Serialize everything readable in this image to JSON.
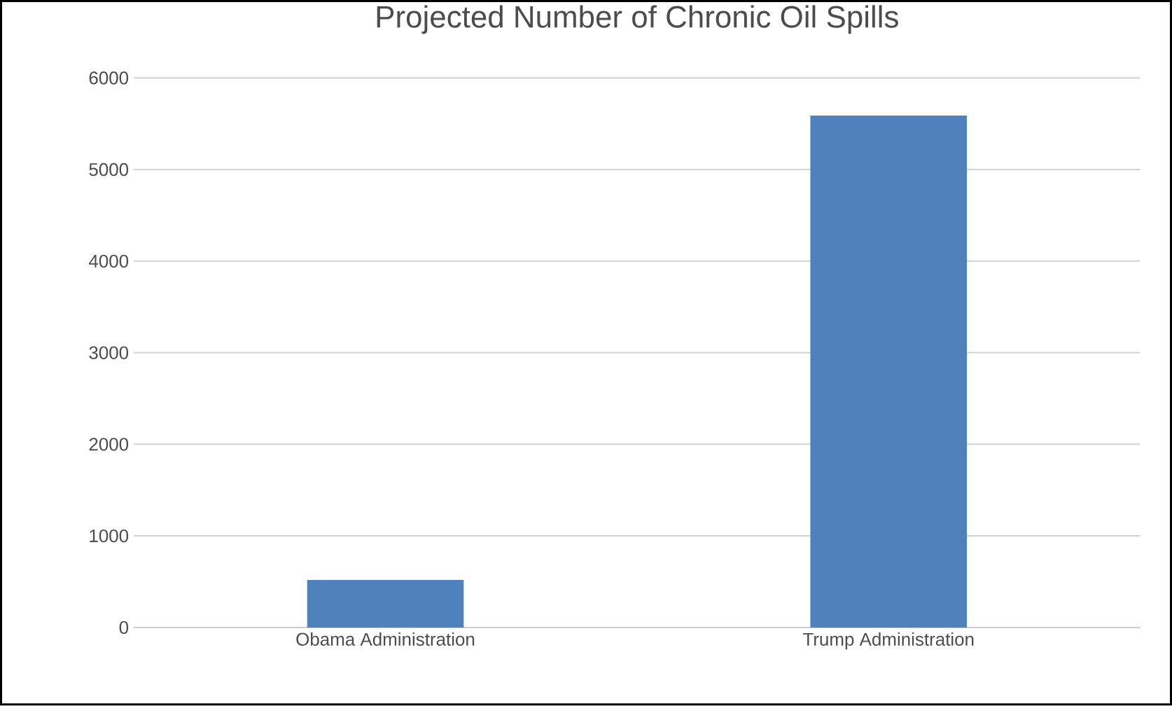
{
  "chart_data": {
    "type": "bar",
    "title": "Projected Number of Chronic Oil Spills",
    "categories": [
      "Obama Administration",
      "Trump Administration"
    ],
    "values": [
      520,
      5590
    ],
    "color": "#4f81bd",
    "ylim": [
      0,
      6000
    ],
    "yticks": [
      0,
      1000,
      2000,
      3000,
      4000,
      5000,
      6000
    ],
    "grid": "y"
  }
}
